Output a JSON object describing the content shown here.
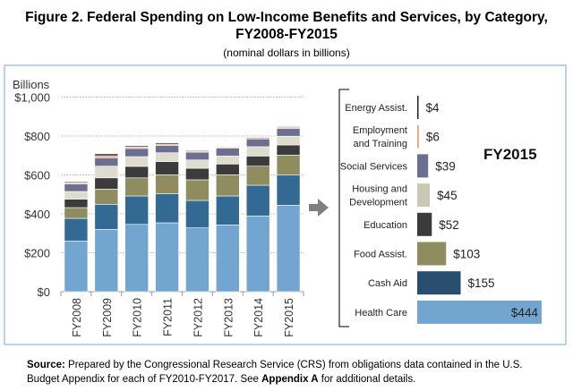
{
  "title_line1": "Figure 2. Federal Spending on Low-Income Benefits and Services, by Category,",
  "title_line2": "FY2008-FY2015",
  "subtitle": "(nominal dollars in billions)",
  "source_label": "Source:",
  "source_text1": " Prepared by the Congressional Research Service (CRS) from obligations data contained in the U.S.",
  "source_text2a": "Budget Appendix for each of FY2010-FY2017. See ",
  "source_appendix": "Appendix A",
  "source_text2b": " for additional details.",
  "chart_data": [
    {
      "type": "bar",
      "stacked": true,
      "ylabel": "Billions",
      "ylim": [
        0,
        1000
      ],
      "yticks": [
        "$0",
        "$200",
        "$400",
        "$600",
        "$800",
        "$1,000"
      ],
      "grid": true,
      "categories": [
        "FY2008",
        "FY2009",
        "FY2010",
        "FY2011",
        "FY2012",
        "FY2013",
        "FY2014",
        "FY2015"
      ],
      "series": [
        {
          "name": "Health Care",
          "color": "#72a6d0",
          "values": [
            260,
            320,
            346,
            354,
            328,
            343,
            389,
            444
          ]
        },
        {
          "name": "Cash Aid",
          "color": "#336a93",
          "values": [
            117,
            129,
            146,
            149,
            141,
            149,
            158,
            155
          ]
        },
        {
          "name": "Food Assist.",
          "color": "#8f8d60",
          "values": [
            55,
            78,
            93,
            98,
            106,
            109,
            98,
            103
          ]
        },
        {
          "name": "Education",
          "color": "#3b3b3b",
          "values": [
            43,
            58,
            59,
            67,
            59,
            55,
            52,
            52
          ]
        },
        {
          "name": "Housing and Development",
          "color": "#deddcd",
          "values": [
            40,
            60,
            50,
            46,
            43,
            41,
            48,
            45
          ]
        },
        {
          "name": "Social Services",
          "color": "#6c6f8f",
          "values": [
            38,
            43,
            42,
            37,
            40,
            40,
            40,
            39
          ]
        },
        {
          "name": "Employment and Training",
          "color": "#f2a283",
          "values": [
            6,
            11,
            7,
            8,
            5,
            5,
            7,
            6
          ]
        },
        {
          "name": "Energy Assist.",
          "color": "#111111",
          "values": [
            5,
            9,
            6,
            6,
            4,
            3,
            3,
            4
          ]
        }
      ]
    },
    {
      "type": "bar",
      "orientation": "horizontal",
      "title": "FY2015",
      "categories": [
        {
          "lines": [
            "Energy Assist."
          ],
          "label": "$4",
          "value": 4,
          "color": "#222222"
        },
        {
          "lines": [
            "Employment",
            "and Training"
          ],
          "label": "$6",
          "value": 6,
          "color": "#f2a283"
        },
        {
          "lines": [
            "Social Services"
          ],
          "label": "$39",
          "value": 39,
          "color": "#6c6f8f"
        },
        {
          "lines": [
            "Housing and",
            "Development"
          ],
          "label": "$45",
          "value": 45,
          "color": "#c9c9b3"
        },
        {
          "lines": [
            "Education"
          ],
          "label": "$52",
          "value": 52,
          "color": "#3b3b3b"
        },
        {
          "lines": [
            "Food Assist."
          ],
          "label": "$103",
          "value": 103,
          "color": "#8f8d60"
        },
        {
          "lines": [
            "Cash Aid"
          ],
          "label": "$155",
          "value": 155,
          "color": "#284f70"
        },
        {
          "lines": [
            "Health Care"
          ],
          "label": "$444",
          "value": 444,
          "color": "#72a6d0",
          "label_inside": true
        }
      ]
    }
  ]
}
